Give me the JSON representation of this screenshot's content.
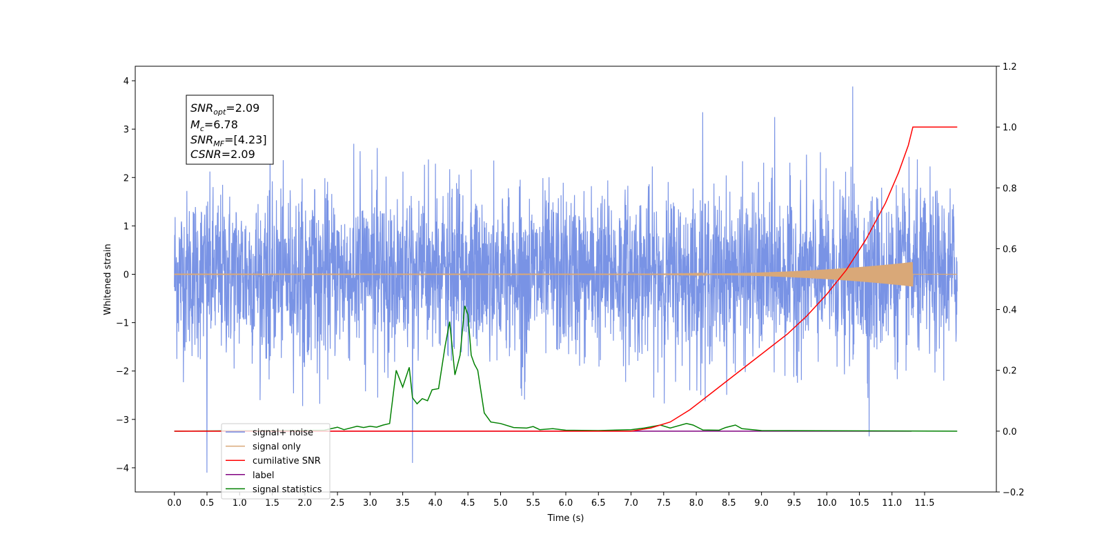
{
  "chart_data": {
    "type": "line",
    "xlabel": "Time (s)",
    "ylabel": "Whitened strain",
    "xlim": [
      -0.6,
      12.6
    ],
    "ylim": [
      -4.5,
      4.3
    ],
    "y2lim": [
      -0.2,
      1.2
    ],
    "xticks": [
      "0.0",
      "0.5",
      "1.0",
      "1.5",
      "2.0",
      "2.5",
      "3.0",
      "3.5",
      "4.0",
      "4.5",
      "5.0",
      "5.5",
      "6.0",
      "6.5",
      "7.0",
      "7.5",
      "8.0",
      "8.5",
      "9.0",
      "9.5",
      "10.0",
      "10.5",
      "11.0",
      "11.5"
    ],
    "yticks": [
      "4",
      "3",
      "2",
      "1",
      "0",
      "−1",
      "−2",
      "−3",
      "−4"
    ],
    "y2ticks": [
      "1.2",
      "1.0",
      "0.8",
      "0.6",
      "0.4",
      "0.2",
      "0.0",
      "−0.2"
    ],
    "grid": false,
    "legend_position": "lower-left",
    "annotation": {
      "snr_opt": "=2.09",
      "mc": "=6.78",
      "snr_mf": "=[4.23]",
      "csnr": "=2.09"
    },
    "series": [
      {
        "name": "signal+ noise",
        "color": "#6a87e2",
        "axis": "left",
        "description": "dense whitened noise between x=0 and x=12, mostly within [-2.5, 2.5]",
        "notable_peaks": [
          [
            0.5,
            -4.1
          ],
          [
            3.65,
            -3.9
          ],
          [
            10.4,
            3.88
          ],
          [
            10.65,
            -3.35
          ],
          [
            8.1,
            3.35
          ],
          [
            9.2,
            3.25
          ]
        ]
      },
      {
        "name": "signal only",
        "color": "#d9a878",
        "axis": "left",
        "description": "near-zero chirp growing in amplitude after x=7 up to ~0.25 at x=11.32"
      },
      {
        "name": "cumilative SNR",
        "color": "#ff0000",
        "axis": "right",
        "x": [
          0,
          7.0,
          7.3,
          7.6,
          7.9,
          8.2,
          8.5,
          8.8,
          9.1,
          9.4,
          9.7,
          10.0,
          10.3,
          10.6,
          10.9,
          11.1,
          11.25,
          11.32,
          12.0
        ],
        "y": [
          0,
          0,
          0.01,
          0.03,
          0.07,
          0.12,
          0.17,
          0.22,
          0.27,
          0.32,
          0.38,
          0.45,
          0.53,
          0.63,
          0.75,
          0.85,
          0.94,
          1.0,
          1.0
        ]
      },
      {
        "name": "label",
        "color": "#800080",
        "axis": "right",
        "x": [
          0,
          11.3
        ],
        "y": [
          0,
          0
        ]
      },
      {
        "name": "signal statistics",
        "color": "#008000",
        "axis": "right",
        "x": [
          0,
          2.3,
          2.5,
          2.6,
          2.8,
          2.9,
          3.0,
          3.1,
          3.2,
          3.3,
          3.4,
          3.5,
          3.6,
          3.65,
          3.72,
          3.8,
          3.88,
          3.95,
          4.05,
          4.15,
          4.22,
          4.3,
          4.38,
          4.45,
          4.5,
          4.55,
          4.6,
          4.65,
          4.75,
          4.85,
          5.0,
          5.2,
          5.4,
          5.5,
          5.6,
          5.8,
          6.0,
          6.5,
          7.0,
          7.2,
          7.45,
          7.6,
          7.85,
          7.95,
          8.1,
          8.35,
          8.45,
          8.6,
          8.7,
          9.0,
          12.0
        ],
        "y": [
          0,
          0.003,
          0.013,
          0.005,
          0.016,
          0.012,
          0.016,
          0.013,
          0.02,
          0.025,
          0.2,
          0.145,
          0.21,
          0.11,
          0.09,
          0.107,
          0.1,
          0.136,
          0.14,
          0.28,
          0.36,
          0.185,
          0.25,
          0.412,
          0.383,
          0.25,
          0.22,
          0.2,
          0.06,
          0.03,
          0.025,
          0.012,
          0.01,
          0.015,
          0.005,
          0.008,
          0.003,
          0.002,
          0.005,
          0.01,
          0.02,
          0.01,
          0.025,
          0.02,
          0.004,
          0.003,
          0.012,
          0.02,
          0.008,
          0.002,
          0
        ]
      }
    ]
  }
}
